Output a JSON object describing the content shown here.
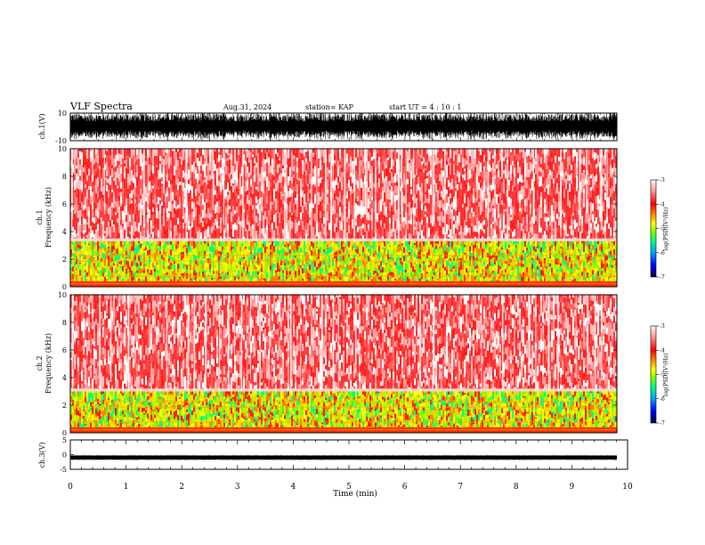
{
  "header": {
    "title": "VLF Spectra",
    "date": "Aug.31, 2024",
    "station": "station= KAP",
    "start": "start  UT =   4 : 10 : 1"
  },
  "chart_data": [
    {
      "type": "line",
      "panel": "ch1-waveform",
      "ylabel": "ch.1(V)",
      "ylim": [
        -10,
        10
      ],
      "yticks": [
        "10",
        "-10"
      ],
      "xlim": [
        0,
        10
      ],
      "xlabel": ""
    },
    {
      "type": "heatmap",
      "panel": "ch1-spectrogram",
      "ylabel_line1": "ch.1",
      "ylabel_line2": "Frequency (kHz)",
      "ylim": [
        0,
        10
      ],
      "yticks": [
        "0",
        "2",
        "4",
        "6",
        "8",
        "10"
      ],
      "xlim": [
        0,
        9.8
      ],
      "colorbar": {
        "label": "log(PSD)(V²/Hz)",
        "range": [
          -7,
          -3
        ],
        "ticks": [
          "-3",
          "-4",
          "-5",
          "-6",
          "-7"
        ],
        "colors": [
          "#000040",
          "#0000ff",
          "#00a0ff",
          "#00ff80",
          "#80ff00",
          "#ffff00",
          "#ff8000",
          "#ff0000",
          "#ff9090",
          "#ffffff"
        ]
      },
      "strong_band_khz": [
        0.4,
        3.3
      ]
    },
    {
      "type": "heatmap",
      "panel": "ch2-spectrogram",
      "ylabel_line1": "ch.2",
      "ylabel_line2": "Frequency (kHz)",
      "ylim": [
        0,
        10
      ],
      "yticks": [
        "0",
        "2",
        "4",
        "6",
        "8",
        "10"
      ],
      "xlim": [
        0,
        9.8
      ],
      "colorbar": {
        "label": "log(PSD)(V²/Hz)",
        "range": [
          -7,
          -3
        ],
        "ticks": [
          "-3",
          "-4",
          "-5",
          "-6",
          "-7"
        ],
        "colors": [
          "#000040",
          "#0000ff",
          "#00a0ff",
          "#00ff80",
          "#80ff00",
          "#ffff00",
          "#ff8000",
          "#ff0000",
          "#ff9090",
          "#ffffff"
        ]
      },
      "strong_band_khz": [
        0.4,
        3.0
      ]
    },
    {
      "type": "line",
      "panel": "ch3-waveform",
      "ylabel": "ch.3(V)",
      "ylim": [
        -5,
        5
      ],
      "yticks": [
        "5",
        "0",
        "-5"
      ],
      "xlim": [
        0,
        10
      ],
      "xlabel": "Time (min)",
      "xticks": [
        "0",
        "1",
        "2",
        "3",
        "4",
        "5",
        "6",
        "7",
        "8",
        "9",
        "10"
      ],
      "level_v": -1.0,
      "amplitude_v": 0.7
    }
  ]
}
